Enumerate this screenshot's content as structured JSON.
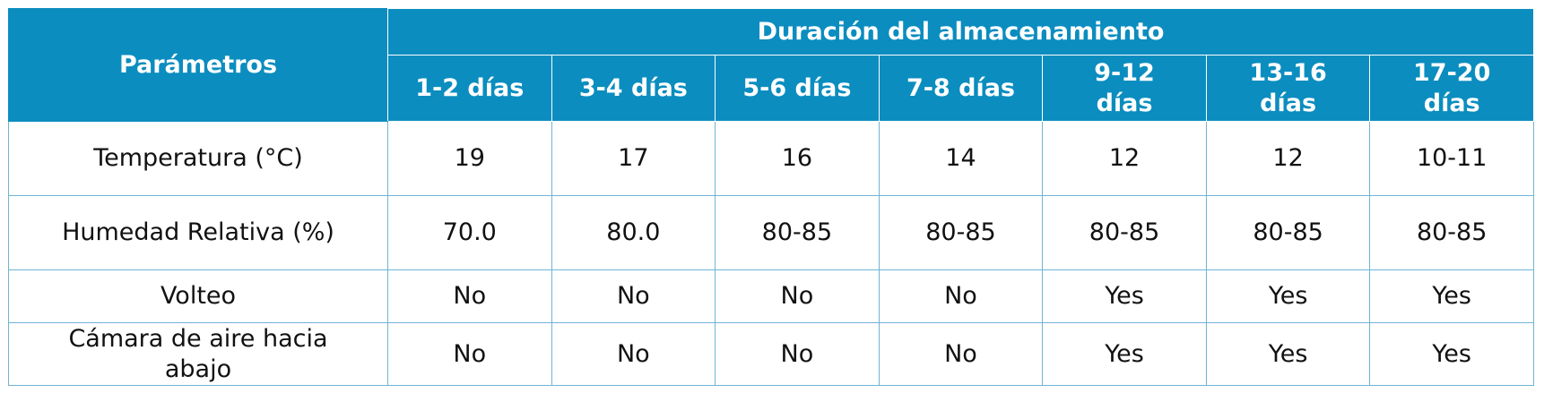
{
  "header": {
    "title": "Parámetros",
    "group": "Duración del almacenamiento",
    "columns": [
      [
        "1-2 días"
      ],
      [
        "3-4 días"
      ],
      [
        "5-6 días"
      ],
      [
        "7-8 días"
      ],
      [
        "9-12",
        "días"
      ],
      [
        "13-16",
        "días"
      ],
      [
        "17-20",
        "días"
      ]
    ]
  },
  "table": {
    "rows": [
      {
        "label": [
          "Temperatura (°C)"
        ],
        "values": [
          "19",
          "17",
          "16",
          "14",
          "12",
          "12",
          "10-11"
        ]
      },
      {
        "label": [
          "Humedad Relativa (%)"
        ],
        "values": [
          "70.0",
          "80.0",
          "80-85",
          "80-85",
          "80-85",
          "80-85",
          "80-85"
        ]
      },
      {
        "label": [
          "Volteo"
        ],
        "values": [
          "No",
          "No",
          "No",
          "No",
          "Yes",
          "Yes",
          "Yes"
        ]
      },
      {
        "label": [
          "Cámara de aire hacia",
          "abajo"
        ],
        "values": [
          "No",
          "No",
          "No",
          "No",
          "Yes",
          "Yes",
          "Yes"
        ]
      }
    ]
  }
}
